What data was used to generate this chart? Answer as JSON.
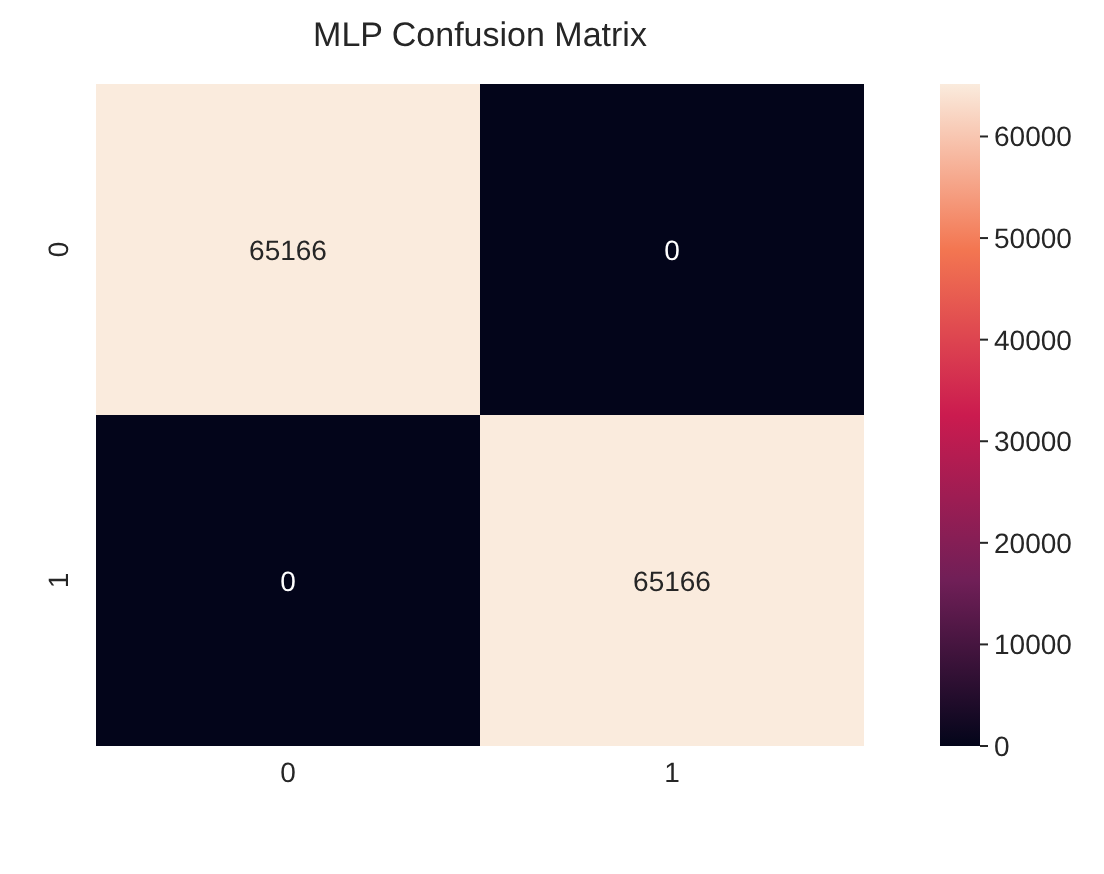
{
  "chart_data": {
    "type": "heatmap",
    "title": "MLP Confusion Matrix",
    "categories": [
      "0",
      "1"
    ],
    "y_categories": [
      "0",
      "1"
    ],
    "cells": [
      [
        65166,
        0
      ],
      [
        0,
        65166
      ]
    ],
    "clim": [
      0,
      65166
    ],
    "cticks": [
      0,
      10000,
      20000,
      30000,
      40000,
      50000,
      60000
    ],
    "data_labels": true
  }
}
